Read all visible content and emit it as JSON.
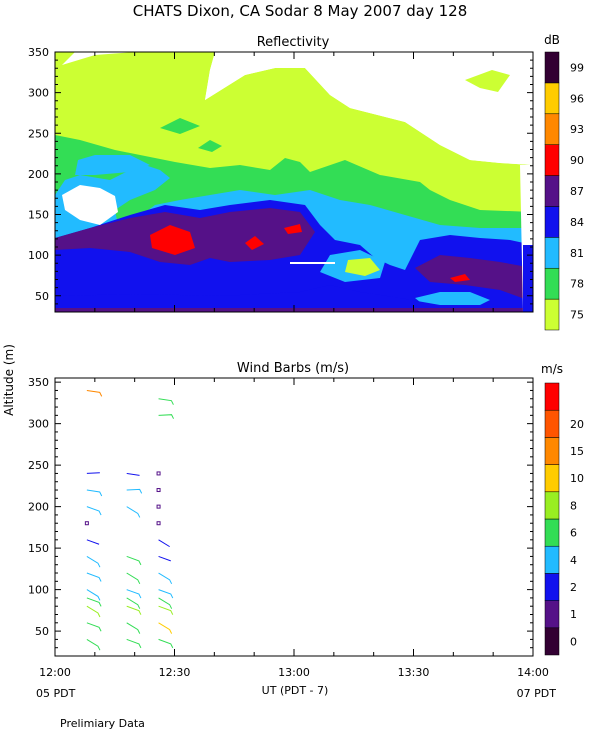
{
  "title": "CHATS Dixon, CA  Sodar   8 May 2007  day 128",
  "footnote": "Prelimiary Data",
  "colors": {
    "reflectivity_scale": [
      "#ccff33",
      "#33dd55",
      "#22bbff",
      "#1111ee",
      "#551188",
      "#ff0000",
      "#ff8800",
      "#ffcc00",
      "#330033"
    ],
    "wind_scale": [
      "#330033",
      "#551188",
      "#1111ee",
      "#22bbff",
      "#33dd55",
      "#99ee22",
      "#ffcc00",
      "#ff8800",
      "#ff5500",
      "#ff0000"
    ]
  },
  "chart_data": [
    {
      "type": "heatmap",
      "title": "Reflectivity",
      "ylim": [
        30,
        350
      ],
      "yticks": [
        "50",
        "100",
        "150",
        "200",
        "250",
        "300",
        "350"
      ],
      "colorbar": {
        "unit": "dB",
        "levels": [
          "75",
          "78",
          "81",
          "84",
          "87",
          "90",
          "93",
          "96",
          "99"
        ]
      },
      "grid": false
    },
    {
      "type": "scatter",
      "title": "Wind Barbs (m/s)",
      "ylabel": "Altitude (m)",
      "xlabel": "UT  (PDT - 7)",
      "xlim": [
        "12:00",
        "14:00"
      ],
      "xticks": [
        "12:00",
        "12:30",
        "13:00",
        "13:30",
        "14:00"
      ],
      "x_start_label": "05 PDT",
      "x_end_label": "07 PDT",
      "ylim": [
        20,
        355
      ],
      "yticks": [
        "50",
        "100",
        "150",
        "200",
        "250",
        "300",
        "350"
      ],
      "colorbar": {
        "unit": "m/s",
        "levels": [
          "0",
          "1",
          "2",
          "4",
          "6",
          "8",
          "10",
          "15",
          "20"
        ]
      },
      "series": [
        {
          "time_min": 8,
          "points": [
            {
              "alt": 340,
              "speed": 10
            },
            {
              "alt": 240,
              "speed": 1
            },
            {
              "alt": 220,
              "speed": 3
            },
            {
              "alt": 200,
              "speed": 3
            },
            {
              "alt": 180,
              "speed": 0
            },
            {
              "alt": 160,
              "speed": 1
            },
            {
              "alt": 140,
              "speed": 2
            },
            {
              "alt": 120,
              "speed": 2
            },
            {
              "alt": 100,
              "speed": 3
            },
            {
              "alt": 90,
              "speed": 4
            },
            {
              "alt": 80,
              "speed": 6
            },
            {
              "alt": 60,
              "speed": 4
            },
            {
              "alt": 40,
              "speed": 4
            }
          ]
        },
        {
          "time_min": 18,
          "points": [
            {
              "alt": 240,
              "speed": 1
            },
            {
              "alt": 220,
              "speed": 3
            },
            {
              "alt": 200,
              "speed": 3
            },
            {
              "alt": 140,
              "speed": 4
            },
            {
              "alt": 120,
              "speed": 4
            },
            {
              "alt": 100,
              "speed": 3
            },
            {
              "alt": 90,
              "speed": 4
            },
            {
              "alt": 80,
              "speed": 6
            },
            {
              "alt": 60,
              "speed": 4
            },
            {
              "alt": 40,
              "speed": 4
            }
          ]
        },
        {
          "time_min": 26,
          "points": [
            {
              "alt": 330,
              "speed": 5
            },
            {
              "alt": 310,
              "speed": 5
            },
            {
              "alt": 240,
              "speed": 0
            },
            {
              "alt": 220,
              "speed": 0
            },
            {
              "alt": 200,
              "speed": 0
            },
            {
              "alt": 180,
              "speed": 0
            },
            {
              "alt": 160,
              "speed": 1
            },
            {
              "alt": 140,
              "speed": 1
            },
            {
              "alt": 120,
              "speed": 2
            },
            {
              "alt": 100,
              "speed": 3
            },
            {
              "alt": 90,
              "speed": 4
            },
            {
              "alt": 80,
              "speed": 6
            },
            {
              "alt": 60,
              "speed": 8
            },
            {
              "alt": 40,
              "speed": 4
            }
          ]
        }
      ]
    }
  ]
}
